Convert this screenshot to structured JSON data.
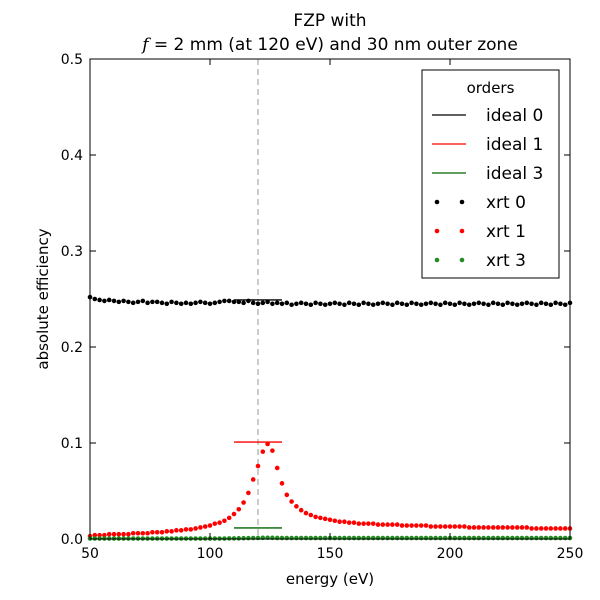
{
  "chart_data": {
    "type": "scatter",
    "title_line1": "FZP with",
    "title_line2_f": "f",
    "title_line2_rest": " = 2 mm (at 120 eV) and 30 nm outer zone",
    "xlabel": "energy (eV)",
    "ylabel": "absolute efficiency",
    "xlim": [
      50,
      250
    ],
    "ylim": [
      0,
      0.5
    ],
    "xticks": [
      50,
      100,
      150,
      200,
      250
    ],
    "xtick_labels": [
      "50",
      "100",
      "150",
      "200",
      "250"
    ],
    "yticks": [
      0.0,
      0.1,
      0.2,
      0.3,
      0.4,
      0.5
    ],
    "ytick_labels": [
      "0.0",
      "0.1",
      "0.2",
      "0.3",
      "0.4",
      "0.5"
    ],
    "reference_line": {
      "x": 120,
      "style": "dashed",
      "color": "#999999"
    },
    "legend": {
      "title": "orders",
      "position": "top-right",
      "entries": [
        {
          "label": "ideal 0",
          "kind": "line",
          "color": "#000000"
        },
        {
          "label": "ideal 1",
          "kind": "line",
          "color": "#ff0000"
        },
        {
          "label": "ideal 3",
          "kind": "line",
          "color": "#006400"
        },
        {
          "label": "xrt 0",
          "kind": "dots",
          "color": "#000000"
        },
        {
          "label": "xrt 1",
          "kind": "dots",
          "color": "#ff0000"
        },
        {
          "label": "xrt 3",
          "kind": "dots",
          "color": "#228b22"
        }
      ]
    },
    "ideal_series": [
      {
        "name": "ideal 0",
        "x": [
          110,
          130
        ],
        "y": [
          0.249,
          0.249
        ],
        "color": "#000000"
      },
      {
        "name": "ideal 1",
        "x": [
          110,
          130
        ],
        "y": [
          0.101,
          0.101
        ],
        "color": "#ff0000"
      },
      {
        "name": "ideal 3",
        "x": [
          110,
          130
        ],
        "y": [
          0.0115,
          0.0115
        ],
        "color": "#006400"
      }
    ],
    "xrt_series": [
      {
        "name": "xrt 0",
        "color": "#000000",
        "x_start": 50,
        "x_step": 2,
        "y": [
          0.252,
          0.25,
          0.249,
          0.248,
          0.249,
          0.248,
          0.247,
          0.248,
          0.247,
          0.246,
          0.247,
          0.248,
          0.246,
          0.247,
          0.247,
          0.246,
          0.245,
          0.247,
          0.246,
          0.245,
          0.246,
          0.245,
          0.246,
          0.247,
          0.246,
          0.245,
          0.246,
          0.247,
          0.248,
          0.248,
          0.247,
          0.247,
          0.246,
          0.248,
          0.246,
          0.245,
          0.246,
          0.247,
          0.245,
          0.246,
          0.245,
          0.246,
          0.244,
          0.245,
          0.246,
          0.245,
          0.244,
          0.246,
          0.245,
          0.244,
          0.245,
          0.246,
          0.245,
          0.244,
          0.246,
          0.245,
          0.244,
          0.246,
          0.245,
          0.244,
          0.245,
          0.246,
          0.245,
          0.244,
          0.246,
          0.245,
          0.244,
          0.246,
          0.245,
          0.244,
          0.245,
          0.246,
          0.245,
          0.244,
          0.246,
          0.245,
          0.244,
          0.246,
          0.245,
          0.244,
          0.245,
          0.246,
          0.245,
          0.244,
          0.246,
          0.245,
          0.244,
          0.246,
          0.245,
          0.244,
          0.245,
          0.246,
          0.245,
          0.244,
          0.246,
          0.245,
          0.244,
          0.246,
          0.245,
          0.244,
          0.246
        ]
      },
      {
        "name": "xrt 1",
        "color": "#ff0000",
        "x_start": 50,
        "x_step": 2,
        "y": [
          0.003,
          0.004,
          0.004,
          0.004,
          0.005,
          0.005,
          0.005,
          0.005,
          0.005,
          0.006,
          0.006,
          0.006,
          0.006,
          0.007,
          0.007,
          0.007,
          0.008,
          0.008,
          0.009,
          0.009,
          0.01,
          0.01,
          0.011,
          0.012,
          0.013,
          0.014,
          0.016,
          0.017,
          0.019,
          0.022,
          0.026,
          0.031,
          0.038,
          0.048,
          0.062,
          0.076,
          0.091,
          0.099,
          0.092,
          0.074,
          0.058,
          0.046,
          0.039,
          0.034,
          0.03,
          0.027,
          0.025,
          0.023,
          0.022,
          0.021,
          0.02,
          0.019,
          0.018,
          0.018,
          0.017,
          0.017,
          0.016,
          0.016,
          0.016,
          0.016,
          0.015,
          0.015,
          0.015,
          0.015,
          0.015,
          0.014,
          0.014,
          0.014,
          0.014,
          0.014,
          0.014,
          0.013,
          0.013,
          0.013,
          0.013,
          0.013,
          0.013,
          0.013,
          0.013,
          0.012,
          0.012,
          0.012,
          0.012,
          0.012,
          0.012,
          0.012,
          0.012,
          0.012,
          0.012,
          0.012,
          0.012,
          0.012,
          0.011,
          0.011,
          0.011,
          0.011,
          0.011,
          0.011,
          0.011,
          0.011,
          0.011
        ]
      },
      {
        "name": "xrt 3",
        "color": "#228b22",
        "x_start": 50,
        "x_step": 2,
        "y": [
          0.0005,
          0.0005,
          0.0005,
          0.0005,
          0.0005,
          0.0005,
          0.0005,
          0.0005,
          0.0005,
          0.0005,
          0.0005,
          0.0005,
          0.0005,
          0.0005,
          0.0005,
          0.0005,
          0.0005,
          0.0005,
          0.0005,
          0.0005,
          0.0005,
          0.0005,
          0.0005,
          0.0005,
          0.0005,
          0.0005,
          0.0005,
          0.0005,
          0.0005,
          0.0006,
          0.0006,
          0.0007,
          0.0008,
          0.0009,
          0.001,
          0.0011,
          0.0012,
          0.0013,
          0.0012,
          0.0011,
          0.001,
          0.001,
          0.001,
          0.001,
          0.001,
          0.001,
          0.001,
          0.001,
          0.001,
          0.001,
          0.001,
          0.001,
          0.001,
          0.001,
          0.001,
          0.001,
          0.001,
          0.001,
          0.001,
          0.001,
          0.001,
          0.001,
          0.001,
          0.001,
          0.001,
          0.001,
          0.001,
          0.001,
          0.001,
          0.001,
          0.001,
          0.001,
          0.001,
          0.001,
          0.001,
          0.001,
          0.001,
          0.001,
          0.001,
          0.001,
          0.001,
          0.001,
          0.001,
          0.001,
          0.001,
          0.001,
          0.001,
          0.001,
          0.001,
          0.001,
          0.001,
          0.001,
          0.001,
          0.001,
          0.001,
          0.001,
          0.001,
          0.001,
          0.001,
          0.001,
          0.001
        ]
      }
    ]
  }
}
